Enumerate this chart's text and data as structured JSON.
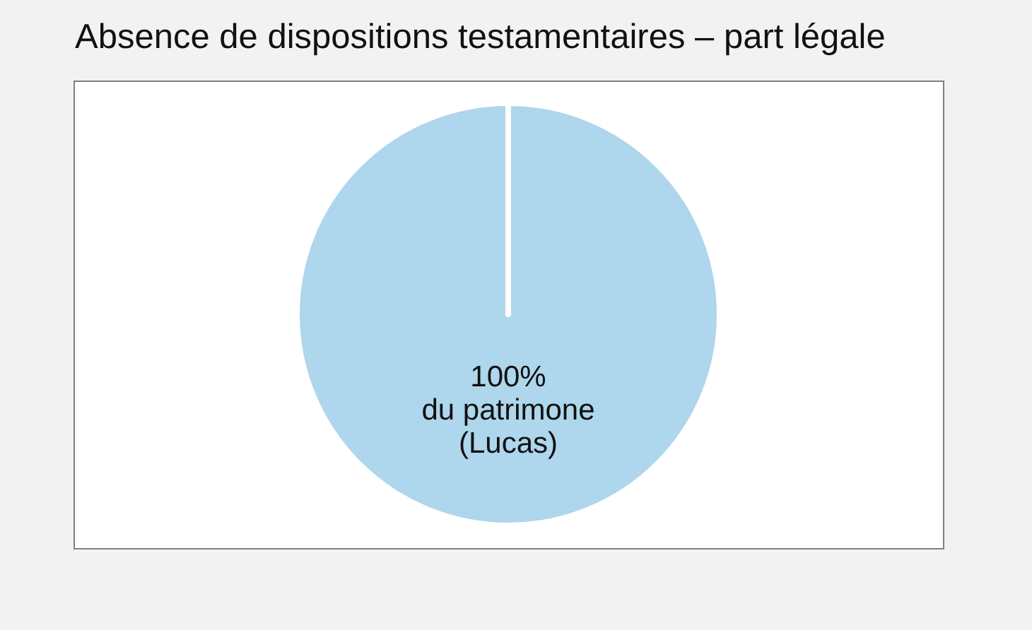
{
  "chart_data": {
    "type": "pie",
    "title": "Absence de dispositions testamentaires – part légale",
    "categories": [
      "du patrimone\n(Lucas)"
    ],
    "values": [
      100
    ],
    "colors": [
      "#aed6ec"
    ],
    "value_labels": [
      "100%"
    ]
  }
}
